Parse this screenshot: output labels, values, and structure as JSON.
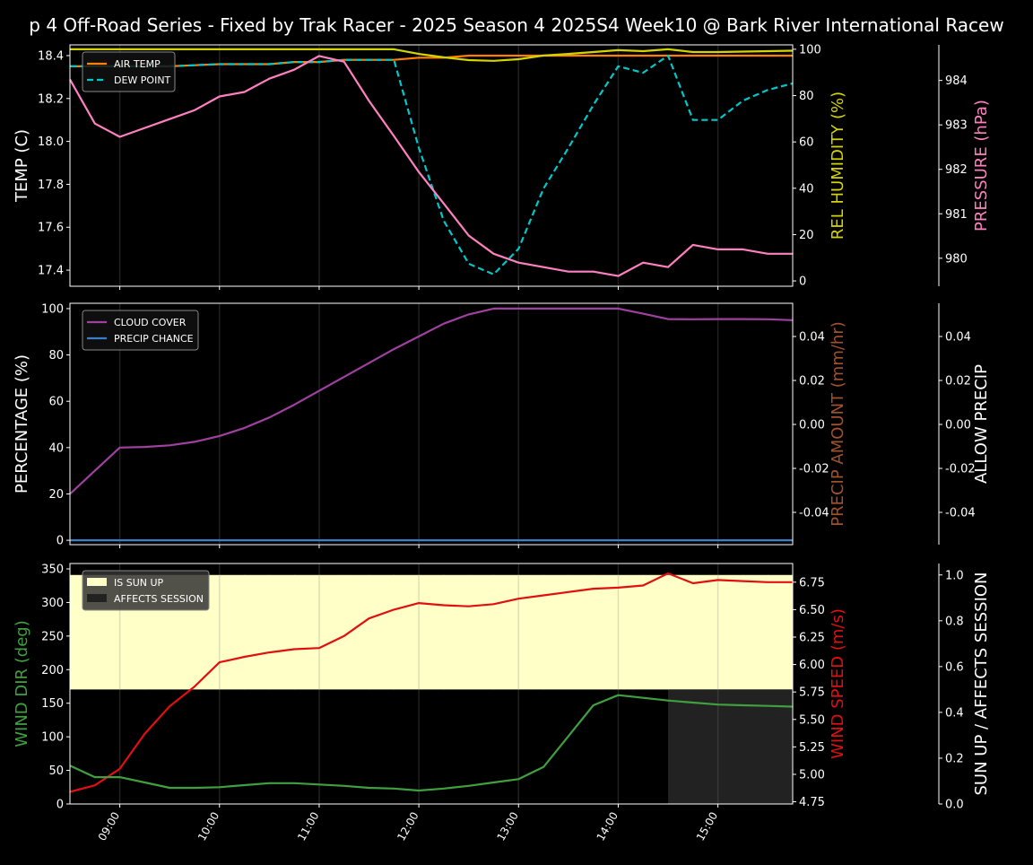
{
  "chart_data": {
    "title": "p 4 Off-Road Series - Fixed by Trak Racer - 2025 Season 4 2025S4 Week10 @ Bark River International Racew",
    "type": "line",
    "x": [
      "08:30",
      "08:45",
      "09:00",
      "09:15",
      "09:30",
      "09:45",
      "10:00",
      "10:15",
      "10:30",
      "10:45",
      "11:00",
      "11:15",
      "11:30",
      "11:45",
      "12:00",
      "12:15",
      "12:30",
      "12:45",
      "13:00",
      "13:15",
      "13:30",
      "13:45",
      "14:00",
      "14:15",
      "14:30",
      "14:45",
      "15:00",
      "15:15",
      "15:30",
      "15:45"
    ],
    "xlim": [
      "08:30",
      "15:45"
    ],
    "x_ticks": [
      "09:00",
      "10:00",
      "11:00",
      "12:00",
      "13:00",
      "14:00",
      "15:00"
    ],
    "grid": "vertical at hours",
    "panels": [
      {
        "axes": [
          {
            "side": "left",
            "label": "TEMP (C)",
            "color": "#ffffff",
            "ylim": [
              17.325,
              18.45
            ],
            "ticks": [
              17.4,
              17.6,
              17.8,
              18.0,
              18.2,
              18.4
            ],
            "decimals": 1
          },
          {
            "side": "right",
            "label": "REL HUMIDITY (%)",
            "color": "#d4d400",
            "ylim": [
              -2.3,
              101.9
            ],
            "ticks": [
              0,
              20,
              40,
              60,
              80,
              100
            ],
            "decimals": 0
          },
          {
            "side": "outer",
            "label": "PRESSURE (hPa)",
            "color": "#ff80c0",
            "ylim": [
              979.37,
              984.8
            ],
            "ticks": [
              980,
              981,
              982,
              983,
              984
            ],
            "decimals": 0
          }
        ],
        "legend": {
          "placement": "upper-left",
          "entries": [
            "AIR TEMP",
            "DEW POINT"
          ]
        },
        "series": [
          {
            "name": "AIR TEMP",
            "axis": 0,
            "color": "#ff8000",
            "style": "solid",
            "values": [
              18.35,
              18.35,
              18.35,
              18.35,
              18.35,
              18.355,
              18.36,
              18.36,
              18.36,
              18.37,
              18.37,
              18.38,
              18.38,
              18.38,
              18.39,
              18.39,
              18.4,
              18.4,
              18.4,
              18.4,
              18.4,
              18.4,
              18.4,
              18.4,
              18.4,
              18.4,
              18.4,
              18.4,
              18.4,
              18.4
            ]
          },
          {
            "name": "DEW POINT",
            "axis": 0,
            "color": "#00c8c8",
            "style": "dashed",
            "values": [
              18.35,
              18.35,
              18.35,
              18.35,
              18.35,
              18.355,
              18.36,
              18.36,
              18.36,
              18.37,
              18.37,
              18.38,
              18.38,
              18.38,
              17.97,
              17.63,
              17.43,
              17.38,
              17.5,
              17.78,
              17.97,
              18.17,
              18.35,
              18.32,
              18.4,
              18.1,
              18.1,
              18.19,
              18.24,
              18.27
            ]
          },
          {
            "axis": 1,
            "color": "#d4d400",
            "style": "solid",
            "values": [
              100,
              100,
              100,
              100,
              100,
              100,
              100,
              100,
              100,
              100,
              100,
              100,
              100,
              100,
              98,
              96.5,
              95.3,
              95,
              95.7,
              97.3,
              98,
              98.8,
              99.6,
              99.2,
              100,
              98.8,
              98.8,
              99,
              99.2,
              99.4
            ]
          },
          {
            "axis": 2,
            "color": "#ff80c0",
            "style": "solid",
            "values": [
              984.02,
              983.03,
              982.73,
              982.93,
              983.13,
              983.33,
              983.64,
              983.74,
              984.04,
              984.24,
              984.55,
              984.42,
              983.54,
              982.75,
              981.94,
              981.23,
              980.51,
              980.1,
              979.9,
              979.8,
              979.7,
              979.7,
              979.6,
              979.9,
              979.8,
              980.3,
              980.2,
              980.2,
              980.1,
              980.1
            ]
          }
        ]
      },
      {
        "axes": [
          {
            "side": "left",
            "label": "PERCENTAGE (%)",
            "color": "#ffffff",
            "ylim": [
              -1.9,
              102.3
            ],
            "ticks": [
              0,
              20,
              40,
              60,
              80,
              100
            ],
            "decimals": 0
          },
          {
            "side": "right",
            "label": "PRECIP AMOUNT (mm/hr)",
            "color": "#a0522d",
            "ylim": [
              -0.0547,
              0.0551
            ],
            "ticks": [
              -0.04,
              -0.02,
              0.0,
              0.02,
              0.04
            ],
            "decimals": 2
          },
          {
            "side": "outer",
            "label": "ALLOW PRECIP",
            "color": "#ffffff",
            "ylim": [
              -0.0547,
              0.0551
            ],
            "ticks": [
              -0.04,
              -0.02,
              0.0,
              0.02,
              0.04
            ],
            "decimals": 2
          }
        ],
        "legend": {
          "placement": "upper-left",
          "entries": [
            "CLOUD COVER",
            "PRECIP CHANCE"
          ]
        },
        "series": [
          {
            "name": "CLOUD COVER",
            "axis": 0,
            "color": "#a040a0",
            "style": "solid",
            "values": [
              20,
              30,
              40,
              40.3,
              41,
              42.5,
              45,
              48.5,
              53,
              58.5,
              64.5,
              70.5,
              76.5,
              82.5,
              88,
              93.5,
              97.5,
              100,
              100,
              100,
              100,
              100,
              100,
              97.8,
              95.5,
              95.4,
              95.5,
              95.5,
              95.4,
              95.0
            ]
          },
          {
            "name": "PRECIP CHANCE",
            "axis": 0,
            "color": "#3a80c8",
            "style": "solid",
            "values": [
              0,
              0,
              0,
              0,
              0,
              0,
              0,
              0,
              0,
              0,
              0,
              0,
              0,
              0,
              0,
              0,
              0,
              0,
              0,
              0,
              0,
              0,
              0,
              0,
              0,
              0,
              0,
              0,
              0,
              0
            ]
          }
        ]
      },
      {
        "axes": [
          {
            "side": "left",
            "label": "WIND DIR (deg)",
            "color": "#40a040",
            "ylim": [
              0,
              358
            ],
            "ticks": [
              0,
              50,
              100,
              150,
              200,
              250,
              300,
              350
            ],
            "decimals": 0
          },
          {
            "side": "right",
            "label": "WIND SPEED (m/s)",
            "color": "#e01010",
            "ylim": [
              4.73,
              6.92
            ],
            "ticks": [
              4.75,
              5.0,
              5.25,
              5.5,
              5.75,
              6.0,
              6.25,
              6.5,
              6.75
            ],
            "decimals": 2
          },
          {
            "side": "outer",
            "label": "SUN UP / AFFECTS SESSION",
            "color": "#ffffff",
            "ylim": [
              0,
              1.05
            ],
            "ticks": [
              0,
              0.2,
              0.4,
              0.6,
              0.8,
              1.0
            ],
            "decimals": 1
          }
        ],
        "legend": {
          "placement": "upper-left",
          "entries": [
            "IS SUN UP",
            "AFFECTS SESSION"
          ]
        },
        "bands": [
          {
            "name": "IS SUN UP",
            "axis": 2,
            "color": "#ffffc8",
            "range": [
              0.5,
              1.0
            ],
            "values": [
              1,
              1,
              1,
              1,
              1,
              1,
              1,
              1,
              1,
              1,
              1,
              1,
              1,
              1,
              1,
              1,
              1,
              1,
              1,
              1,
              1,
              1,
              1,
              1,
              1,
              1,
              1,
              1,
              1,
              1
            ]
          },
          {
            "name": "AFFECTS SESSION",
            "axis": 2,
            "color": "#222222",
            "range": [
              0,
              0.5
            ],
            "values": [
              0,
              0,
              0,
              0,
              0,
              0,
              0,
              0,
              0,
              0,
              0,
              0,
              0,
              0,
              0,
              0,
              0,
              0,
              0,
              0,
              0,
              0,
              0,
              0,
              1,
              1,
              1,
              1,
              1,
              1
            ]
          }
        ],
        "series": [
          {
            "axis": 1,
            "color": "#e01010",
            "style": "solid",
            "values": [
              4.84,
              4.9,
              5.05,
              5.37,
              5.62,
              5.8,
              6.02,
              6.07,
              6.11,
              6.14,
              6.15,
              6.26,
              6.42,
              6.5,
              6.56,
              6.54,
              6.53,
              6.55,
              6.6,
              6.63,
              6.66,
              6.69,
              6.7,
              6.72,
              6.83,
              6.74,
              6.77,
              6.76,
              6.75,
              6.75
            ]
          },
          {
            "axis": 0,
            "color": "#40a040",
            "style": "solid",
            "values": [
              57,
              40,
              40,
              32,
              24,
              24,
              25,
              28,
              31,
              31,
              29,
              27,
              24,
              23,
              20,
              23,
              27,
              32,
              37,
              55,
              101,
              147,
              162,
              158,
              154,
              151,
              148,
              147,
              146,
              145
            ]
          }
        ]
      }
    ]
  }
}
